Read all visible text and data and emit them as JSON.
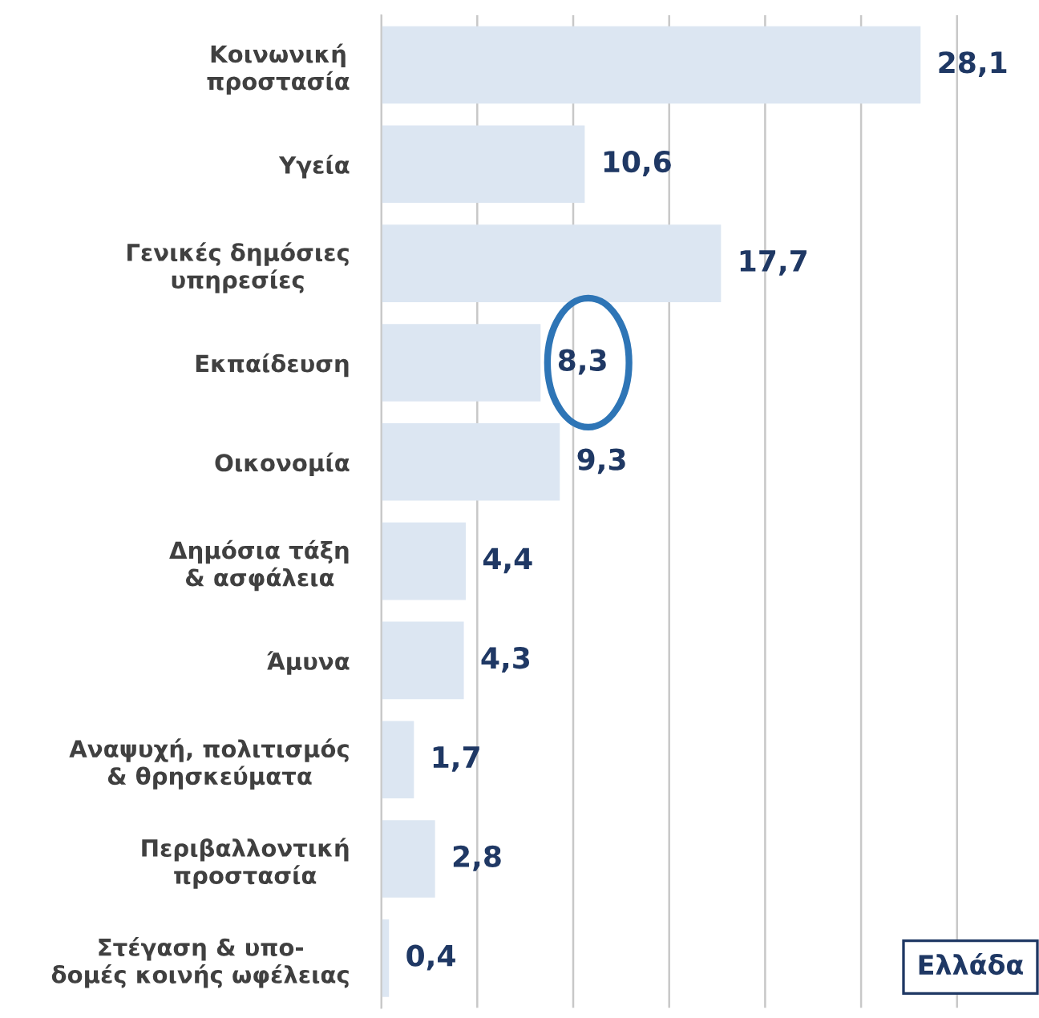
{
  "chart_data": {
    "type": "bar",
    "orientation": "horizontal",
    "categories": [
      "Κοινωνική\nπροστασία",
      "Υγεία",
      "Γενικές δημόσιες\nυπηρεσίες",
      "Εκπαίδευση",
      "Οικονομία",
      "Δημόσια τάξη\n& ασφάλεια",
      "Άμυνα",
      "Αναψυχή, πολιτισμός\n& θρησκεύματα",
      "Περιβαλλοντική\nπροστασία",
      "Στέγαση & υπο-\nδομές κοινής ωφέλειας"
    ],
    "values": [
      28.1,
      10.6,
      17.7,
      8.3,
      9.3,
      4.4,
      4.3,
      1.7,
      2.8,
      0.4
    ],
    "value_labels": [
      "28,1",
      "10,6",
      "17,7",
      "8,3",
      "9,3",
      "4,4",
      "4,3",
      "1,7",
      "2,8",
      "0,4"
    ],
    "color": "#dce6f2",
    "xlim": [
      0,
      34
    ],
    "xticks": [
      {
        "value": 0,
        "label": null
      },
      {
        "value": 5,
        "label": null
      },
      {
        "value": 10,
        "label": null
      },
      {
        "value": 15,
        "label": null
      },
      {
        "value": 20,
        "label": null
      },
      {
        "value": 25,
        "label": null
      },
      {
        "value": 30,
        "label": null
      }
    ],
    "tick_labels": "y",
    "grid": "x",
    "annotations": [
      "Ελλάδα"
    ]
  }
}
